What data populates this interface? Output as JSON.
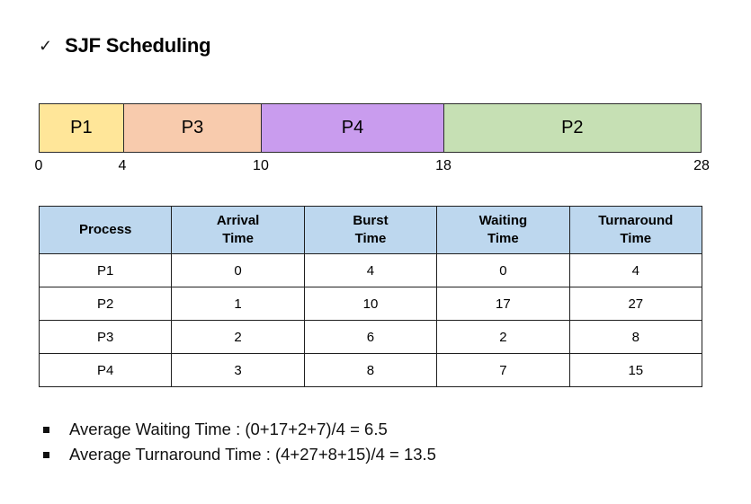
{
  "slide_title": {
    "check_glyph": "✓",
    "text": "SJF Scheduling"
  },
  "gantt": {
    "segments": [
      {
        "label": "P1",
        "start": 0,
        "end": 4,
        "color": "#FFE699",
        "width_pct": 12.62
      },
      {
        "label": "P3",
        "start": 4,
        "end": 10,
        "color": "#F8CBAD",
        "width_pct": 20.89
      },
      {
        "label": "P4",
        "start": 10,
        "end": 18,
        "color": "#C99CEE",
        "width_pct": 27.54
      },
      {
        "label": "P2",
        "start": 18,
        "end": 28,
        "color": "#C6E0B4",
        "width_pct": 38.95
      }
    ],
    "ticks": [
      {
        "label": "0",
        "pos_pct": 0
      },
      {
        "label": "4",
        "pos_pct": 12.62
      },
      {
        "label": "10",
        "pos_pct": 33.51
      },
      {
        "label": "18",
        "pos_pct": 61.06
      },
      {
        "label": "28",
        "pos_pct": 100
      }
    ]
  },
  "table": {
    "header_bg": "#BDD7EE",
    "headers": [
      {
        "lines": [
          "Process"
        ]
      },
      {
        "lines": [
          "Arrival",
          "Time"
        ]
      },
      {
        "lines": [
          "Burst",
          "Time"
        ]
      },
      {
        "lines": [
          "Waiting",
          "Time"
        ]
      },
      {
        "lines": [
          "Turnaround",
          "Time"
        ]
      }
    ],
    "rows": [
      [
        "P1",
        "0",
        "4",
        "0",
        "4"
      ],
      [
        "P2",
        "1",
        "10",
        "17",
        "27"
      ],
      [
        "P3",
        "2",
        "6",
        "2",
        "8"
      ],
      [
        "P4",
        "3",
        "8",
        "7",
        "15"
      ]
    ]
  },
  "bullets": [
    "Average Waiting Time : (0+17+2+7)/4 = 6.5",
    "Average Turnaround Time : (4+27+8+15)/4 = 13.5"
  ]
}
